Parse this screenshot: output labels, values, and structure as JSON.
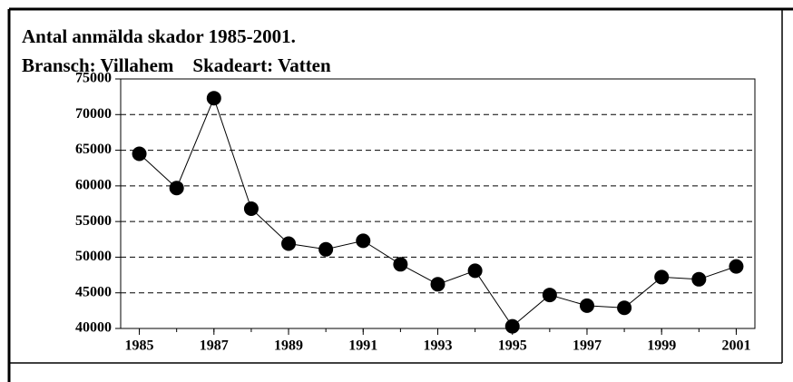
{
  "chart_data": {
    "type": "line",
    "title": "Antal anmälda skador 1985-2001.",
    "subtitle": "Bransch: Villahem    Skadeart: Vatten",
    "x": [
      1985,
      1986,
      1987,
      1988,
      1989,
      1990,
      1991,
      1992,
      1993,
      1994,
      1995,
      1996,
      1997,
      1998,
      1999,
      2000,
      2001
    ],
    "series": [
      {
        "color": "#000000",
        "values": [
          64500,
          59700,
          72300,
          56800,
          51900,
          51100,
          52300,
          49000,
          46200,
          48100,
          40300,
          44700,
          43200,
          42900,
          47200,
          46900,
          48700
        ]
      }
    ],
    "xlim": [
      1984.5,
      2001.5
    ],
    "xticks": [
      1985,
      1987,
      1989,
      1991,
      1993,
      1995,
      1997,
      1999,
      2001
    ],
    "ylim": [
      40000,
      75000
    ],
    "yticks": [
      40000,
      45000,
      50000,
      55000,
      60000,
      65000,
      70000,
      75000
    ],
    "grid": true
  }
}
